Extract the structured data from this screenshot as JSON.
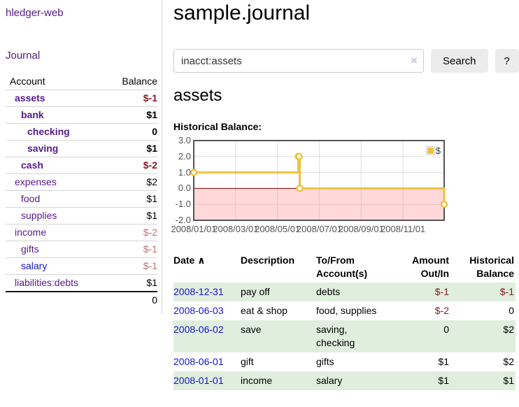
{
  "colors": {
    "purple_link": "#551a8b",
    "blue_link": "#1414cf",
    "negative_dark": "#861a22",
    "negative_light": "#bc6f76",
    "row_stripe_green": "#e0eede",
    "series_yellow": "#edc240",
    "zero_line": "#8b0000",
    "chart_border": "#545454",
    "grid_line": "#dddddd"
  },
  "sidebar": {
    "brand": "hledger-web",
    "nav_journal": "Journal",
    "accounts_table": {
      "header_account": "Account",
      "header_balance": "Balance",
      "rows": [
        {
          "name": "assets",
          "level": 1,
          "bold": true,
          "link": "purple",
          "balance": "$-1",
          "balance_class": "neg"
        },
        {
          "name": "bank",
          "level": 2,
          "bold": true,
          "link": "purple",
          "balance": "$1",
          "balance_class": ""
        },
        {
          "name": "checking",
          "level": 3,
          "bold": true,
          "link": "purple",
          "balance": "0",
          "balance_class": ""
        },
        {
          "name": "saving",
          "level": 3,
          "bold": true,
          "link": "purple",
          "balance": "$1",
          "balance_class": ""
        },
        {
          "name": "cash",
          "level": 2,
          "bold": true,
          "link": "purple",
          "balance": "$-2",
          "balance_class": "neg"
        },
        {
          "name": "expenses",
          "level": 1,
          "bold": false,
          "link": "purple",
          "balance": "$2",
          "balance_class": ""
        },
        {
          "name": "food",
          "level": 2,
          "bold": false,
          "link": "purple",
          "balance": "$1",
          "balance_class": ""
        },
        {
          "name": "supplies",
          "level": 2,
          "bold": false,
          "link": "purple",
          "balance": "$1",
          "balance_class": ""
        },
        {
          "name": "income",
          "level": 1,
          "bold": false,
          "link": "purple",
          "balance": "$-2",
          "balance_class": "negl"
        },
        {
          "name": "gifts",
          "level": 2,
          "bold": false,
          "link": "purple",
          "balance": "$-1",
          "balance_class": "negl"
        },
        {
          "name": "salary",
          "level": 2,
          "bold": false,
          "link": "blue",
          "balance": "$-1",
          "balance_class": "negl"
        },
        {
          "name": "liabilities:debts",
          "level": 1,
          "bold": false,
          "link": "purple",
          "balance": "$1",
          "balance_class": ""
        }
      ],
      "total": "0"
    }
  },
  "header": {
    "title": "sample.journal"
  },
  "search": {
    "value": "inacct:assets",
    "clear_icon": "×",
    "search_label": "Search",
    "help_label": "?"
  },
  "account_page": {
    "heading": "assets",
    "chart_label": "Historical Balance:"
  },
  "chart_data": {
    "type": "line",
    "step": true,
    "title": "Historical Balance:",
    "series": [
      {
        "name": "$",
        "color": "#edc240",
        "points": [
          {
            "date": "2008-01-01",
            "value": 1
          },
          {
            "date": "2008-06-01",
            "value": 2
          },
          {
            "date": "2008-06-02",
            "value": 2
          },
          {
            "date": "2008-06-03",
            "value": 0
          },
          {
            "date": "2008-12-31",
            "value": -1
          }
        ]
      }
    ],
    "x_range": [
      "2008-01-01",
      "2008-12-31"
    ],
    "ylim": [
      -2,
      3
    ],
    "x_ticks": [
      "2008/01/01",
      "2008/03/01",
      "2008/05/01",
      "2008/07/01",
      "2008/09/01",
      "2008/11/01"
    ],
    "y_ticks": [
      "3.0",
      "2.0",
      "1.0",
      "0.0",
      "-1.0",
      "-2.0"
    ],
    "grid": true,
    "legend_position": "top-right",
    "negative_region": {
      "from": 0,
      "to": -2
    },
    "zero_line": true
  },
  "register_table": {
    "headers": {
      "date": "Date",
      "sort_icon": "∧",
      "description": "Description",
      "accounts": "To/From Account(s)",
      "amount": "Amount Out/In",
      "balance": "Historical Balance"
    },
    "rows": [
      {
        "date": "2008-12-31",
        "description": "pay off",
        "accounts": "debts",
        "amount": "$-1",
        "amount_class": "neg",
        "balance": "$-1",
        "balance_class": "neg",
        "shaded": true
      },
      {
        "date": "2008-06-03",
        "description": "eat & shop",
        "accounts": "food, supplies",
        "amount": "$-2",
        "amount_class": "neg",
        "balance": "0",
        "balance_class": "",
        "shaded": false
      },
      {
        "date": "2008-06-02",
        "description": "save",
        "accounts": "saving, checking",
        "amount": "0",
        "amount_class": "",
        "balance": "$2",
        "balance_class": "",
        "shaded": true
      },
      {
        "date": "2008-06-01",
        "description": "gift",
        "accounts": "gifts",
        "amount": "$1",
        "amount_class": "",
        "balance": "$2",
        "balance_class": "",
        "shaded": false
      },
      {
        "date": "2008-01-01",
        "description": "income",
        "accounts": "salary",
        "amount": "$1",
        "amount_class": "",
        "balance": "$1",
        "balance_class": "",
        "shaded": true
      }
    ]
  }
}
